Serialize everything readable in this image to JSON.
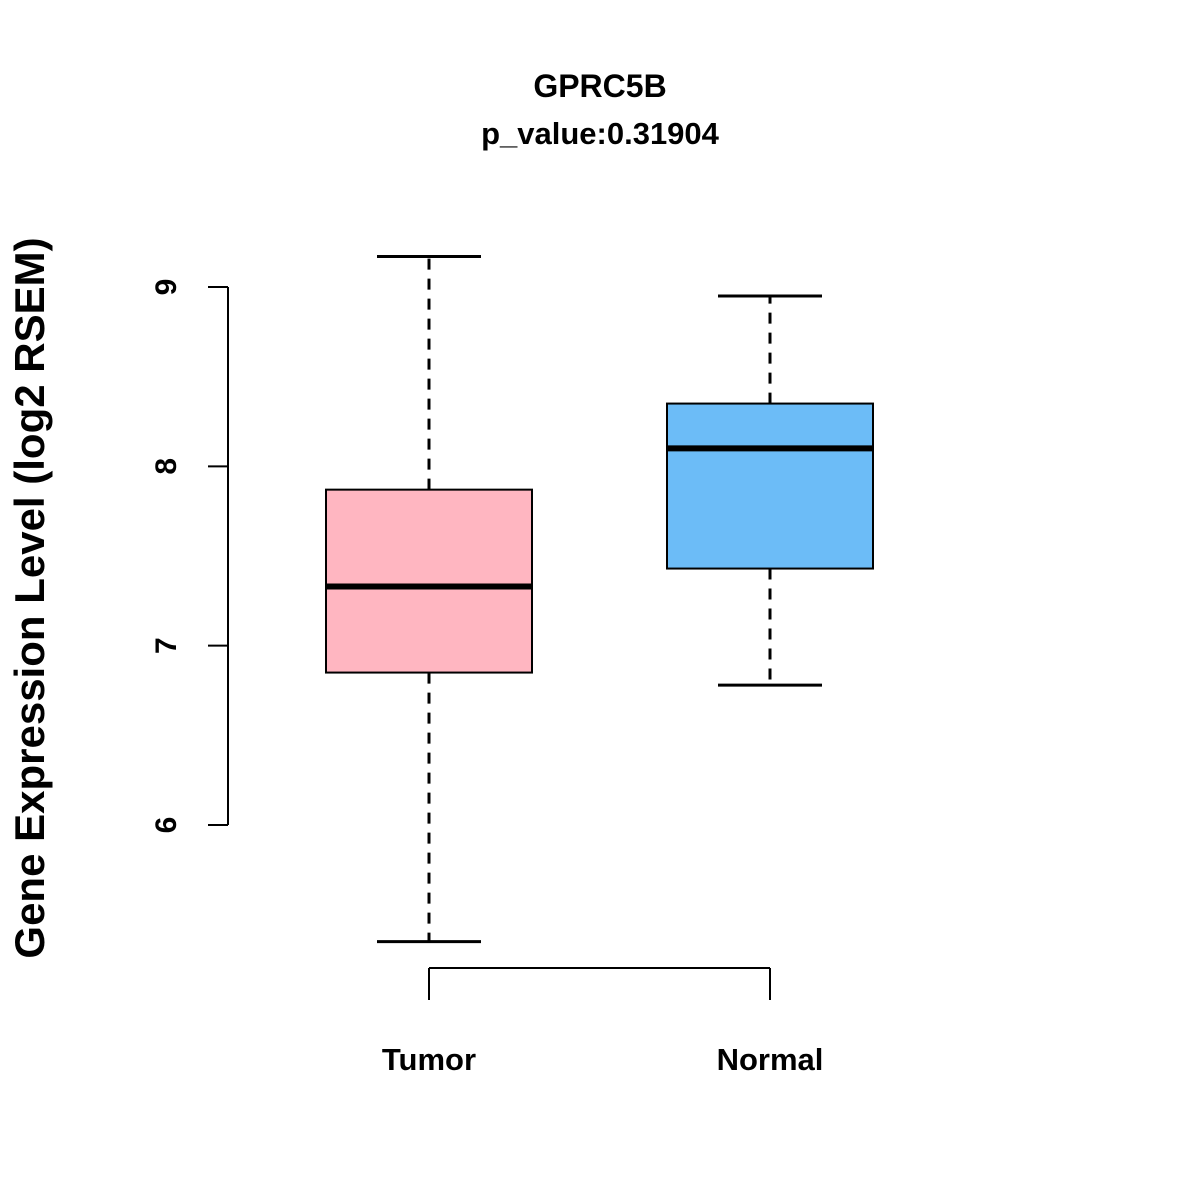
{
  "title": "GPRC5B",
  "subtitle": "p_value:0.31904",
  "y_axis": {
    "label": "Gene Expression Level (log2 RSEM)",
    "tick_labels": [
      "6",
      "7",
      "8",
      "9"
    ]
  },
  "x_axis": {
    "categories": [
      "Tumor",
      "Normal"
    ]
  },
  "colors": {
    "tumor_box": "#FFB6C1",
    "normal_box": "#6CBCF7",
    "axis": "#000000"
  },
  "chart_data": {
    "type": "boxplot",
    "title": "GPRC5B",
    "subtitle": "p_value:0.31904",
    "ylabel": "Gene Expression Level (log2 RSEM)",
    "xlabel": "",
    "categories": [
      "Tumor",
      "Normal"
    ],
    "yticks": [
      6,
      7,
      8,
      9
    ],
    "ylim": [
      5.2,
      9.3
    ],
    "grid": false,
    "legend": "none",
    "series": [
      {
        "name": "Tumor",
        "color": "#FFB6C1",
        "whisker_low": 5.35,
        "q1": 6.85,
        "median": 7.33,
        "q3": 7.87,
        "whisker_high": 9.17
      },
      {
        "name": "Normal",
        "color": "#6CBCF7",
        "whisker_low": 6.78,
        "q1": 7.43,
        "median": 8.1,
        "q3": 8.35,
        "whisker_high": 8.95
      }
    ]
  }
}
